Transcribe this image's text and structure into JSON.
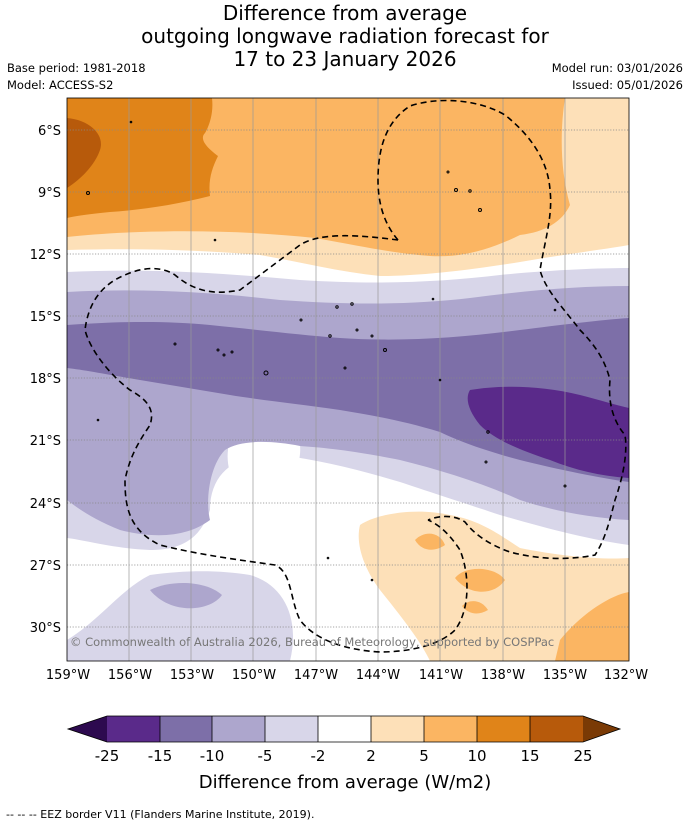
{
  "title": {
    "line1": "Difference from average",
    "line2": "outgoing longwave radiation forecast for",
    "line3": "17 to 23 January 2026"
  },
  "meta": {
    "base_period": "Base period: 1981-2018",
    "model": "Model: ACCESS-S2",
    "model_run": "Model run: 03/01/2026",
    "issued": "Issued: 05/01/2026"
  },
  "map": {
    "lat_labels": [
      "6°S",
      "9°S",
      "12°S",
      "15°S",
      "18°S",
      "21°S",
      "24°S",
      "27°S",
      "30°S"
    ],
    "lon_labels": [
      "159°W",
      "156°W",
      "153°W",
      "150°W",
      "147°W",
      "144°W",
      "141°W",
      "138°W",
      "135°W",
      "132°W"
    ],
    "copyright": "© Commonwealth of Australia 2026, Bureau of Meteorology, supported by COSPPac"
  },
  "colorbar": {
    "ticks": [
      "-25",
      "-15",
      "-10",
      "-5",
      "-2",
      "2",
      "5",
      "10",
      "15",
      "25"
    ],
    "label": "Difference from average (W/m2)",
    "colors": {
      "under": "#2d0a4f",
      "m25_15": "#5a2a8a",
      "m15_10": "#7d6fa8",
      "m10_5": "#ada6cd",
      "m5_2": "#d8d6e9",
      "m2_2": "#ffffff",
      "p2_5": "#fde0b8",
      "p5_10": "#fbb562",
      "p10_15": "#e08419",
      "p15_25": "#b75a0b",
      "over": "#7a3a05"
    }
  },
  "footnote": "--  --  -- EEZ border V11 (Flanders Marine Institute, 2019)."
}
